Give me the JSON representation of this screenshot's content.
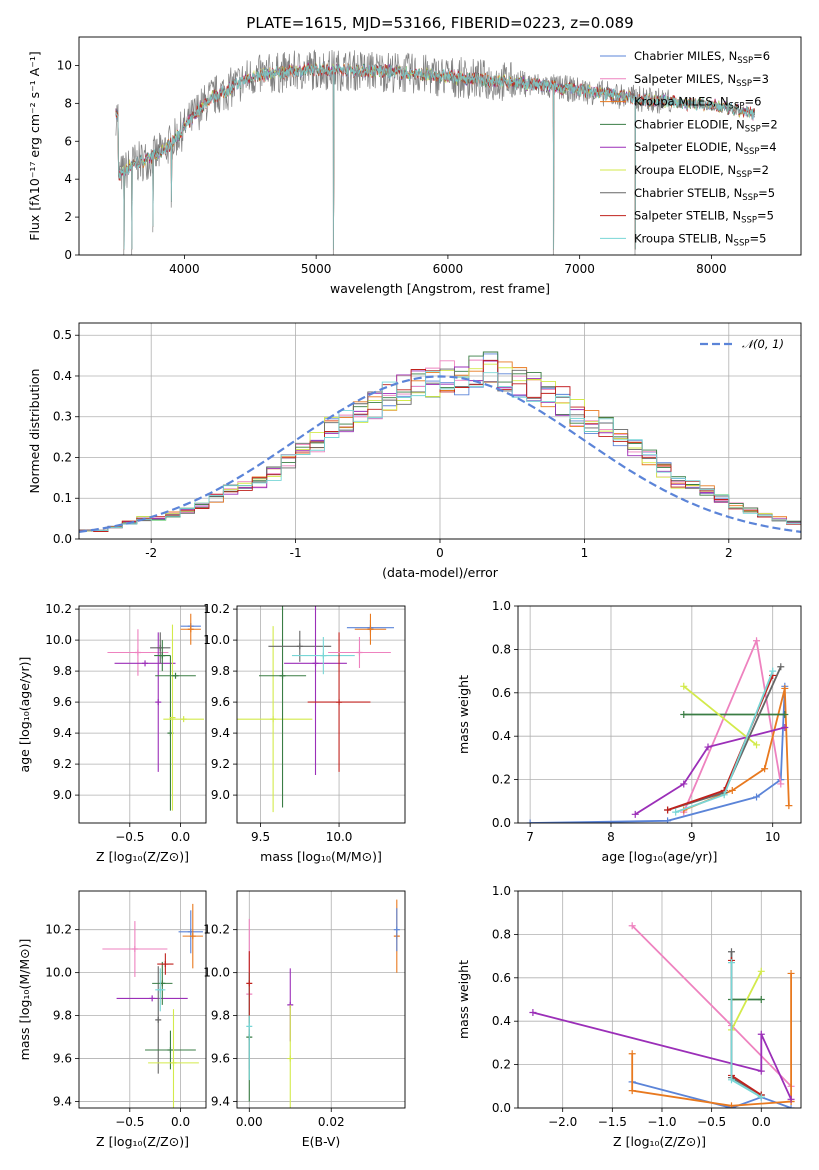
{
  "figure": {
    "title": "PLATE=1615, MJD=53166, FIBERID=0223, z=0.089"
  },
  "colors": {
    "palette": [
      "#5b84d8",
      "#ee82bf",
      "#e8791f",
      "#3a7d44",
      "#9b2fb8",
      "#d3ea4b",
      "#666666",
      "#c0221d",
      "#78d6d6"
    ],
    "grid": "#b0b0b0",
    "spectrum": "#808080",
    "gaussian": "#5b84d8"
  },
  "chart_data": [
    {
      "id": "spectrum",
      "type": "line",
      "xlabel": "wavelength [Angstrom, rest frame]",
      "ylabel": "Flux [fλ10⁻¹⁷ erg cm⁻² s⁻¹ A⁻¹]",
      "xlim": [
        3200,
        8680
      ],
      "ylim": [
        0,
        11.5
      ],
      "xticks": [
        4000,
        5000,
        6000,
        7000,
        8000
      ],
      "yticks": [
        0,
        2,
        4,
        6,
        8,
        10
      ],
      "grid": false,
      "legend_position": "right",
      "legend": [
        {
          "label": "Chabrier MILES, N",
          "sub": "SSP",
          "suffix": "=6"
        },
        {
          "label": "Salpeter MILES, N",
          "sub": "SSP",
          "suffix": "=3"
        },
        {
          "label": "Kroupa MILES, N",
          "sub": "SSP",
          "suffix": "=6"
        },
        {
          "label": "Chabrier ELODIE, N",
          "sub": "SSP",
          "suffix": "=2"
        },
        {
          "label": "Salpeter ELODIE, N",
          "sub": "SSP",
          "suffix": "=4"
        },
        {
          "label": "Kroupa ELODIE, N",
          "sub": "SSP",
          "suffix": "=2"
        },
        {
          "label": "Chabrier STELIB, N",
          "sub": "SSP",
          "suffix": "=5"
        },
        {
          "label": "Salpeter STELIB, N",
          "sub": "SSP",
          "suffix": "=5"
        },
        {
          "label": "Kroupa STELIB, N",
          "sub": "SSP",
          "suffix": "=5"
        }
      ],
      "continuum": {
        "x": [
          3500,
          3550,
          3600,
          3700,
          3800,
          3900,
          4000,
          4100,
          4200,
          4300,
          4500,
          4700,
          5000,
          5500,
          6000,
          6500,
          7000,
          7500,
          8000,
          8350
        ],
        "y": [
          4.2,
          4.4,
          4.8,
          5.0,
          5.3,
          5.9,
          6.7,
          7.6,
          8.3,
          8.6,
          9.4,
          9.6,
          9.8,
          9.7,
          9.4,
          9.1,
          8.7,
          8.2,
          7.9,
          7.4
        ]
      },
      "spikes": [
        {
          "x": 3540,
          "y": 0
        },
        {
          "x": 3600,
          "y": 0
        },
        {
          "x": 3760,
          "y": 1.2
        },
        {
          "x": 3900,
          "y": 2.5
        },
        {
          "x": 5130,
          "y": 0
        },
        {
          "x": 6800,
          "y": 0
        },
        {
          "x": 7420,
          "y": 0
        }
      ]
    },
    {
      "id": "residual-histogram",
      "type": "bar",
      "xlabel": "(data-model)/error",
      "ylabel": "Normed distribution",
      "xlim": [
        -2.5,
        2.5
      ],
      "ylim": [
        0,
        0.53
      ],
      "xticks": [
        -2,
        -1,
        0,
        1,
        2
      ],
      "yticks": [
        0.0,
        0.1,
        0.2,
        0.3,
        0.4,
        0.5
      ],
      "grid": true,
      "legend_position": "top-right",
      "legend": "𝒩(0, 1)",
      "bin_width": 0.1,
      "reference_values": [
        0.02,
        0.02,
        0.03,
        0.04,
        0.05,
        0.05,
        0.06,
        0.07,
        0.08,
        0.1,
        0.12,
        0.13,
        0.14,
        0.16,
        0.19,
        0.22,
        0.24,
        0.27,
        0.29,
        0.31,
        0.33,
        0.35,
        0.37,
        0.38,
        0.38,
        0.4,
        0.39,
        0.41,
        0.42,
        0.4,
        0.39,
        0.37,
        0.35,
        0.34,
        0.31,
        0.29,
        0.27,
        0.25,
        0.22,
        0.2,
        0.17,
        0.14,
        0.13,
        0.12,
        0.1,
        0.08,
        0.07,
        0.06,
        0.05,
        0.04
      ],
      "model_curve": "gaussian"
    },
    {
      "id": "age-vs-Z",
      "type": "scatter",
      "xlabel": "Z [log₁₀(Z/Z⊙)]",
      "ylabel": "age  [log₁₀(age/yr)]",
      "xlim": [
        -1.0,
        0.25
      ],
      "ylim": [
        8.82,
        10.22
      ],
      "xticks": [
        -0.5,
        0.0
      ],
      "xticklabels": [
        "−0.5",
        "0.0"
      ],
      "yticks": [
        9.0,
        9.2,
        9.4,
        9.6,
        9.8,
        10.0,
        10.2
      ],
      "grid": true,
      "points": [
        {
          "x": -0.42,
          "y": 9.92,
          "xerr": 0.3,
          "yerr": 0.15,
          "color": 1
        },
        {
          "x": -0.35,
          "y": 9.85,
          "xerr": 0.3,
          "yerr": 0.0,
          "color": 4
        },
        {
          "x": -0.22,
          "y": 9.6,
          "xerr": 0.0,
          "yerr": 0.45,
          "color": 4
        },
        {
          "x": -0.2,
          "y": 9.95,
          "xerr": 0.1,
          "yerr": 0.1,
          "color": 6
        },
        {
          "x": -0.18,
          "y": 9.9,
          "xerr": 0.08,
          "yerr": 0.1,
          "color": 3
        },
        {
          "x": -0.1,
          "y": 9.4,
          "xerr": 0.0,
          "yerr": 0.5,
          "color": 3
        },
        {
          "x": -0.08,
          "y": 9.5,
          "xerr": 0.0,
          "yerr": 0.6,
          "color": 5
        },
        {
          "x": -0.05,
          "y": 9.77,
          "xerr": 0.2,
          "yerr": 0.0,
          "color": 3
        },
        {
          "x": 0.03,
          "y": 9.49,
          "xerr": 0.2,
          "yerr": 0.0,
          "color": 5
        },
        {
          "x": 0.1,
          "y": 10.09,
          "xerr": 0.1,
          "yerr": 0.0,
          "color": 0
        },
        {
          "x": 0.1,
          "y": 10.07,
          "xerr": 0.1,
          "yerr": 0.1,
          "color": 2
        }
      ]
    },
    {
      "id": "age-vs-mass",
      "type": "scatter",
      "xlabel": "mass [log₁₀(M/M⊙)]",
      "ylabel": "",
      "xlim": [
        9.35,
        10.42
      ],
      "ylim": [
        8.82,
        10.22
      ],
      "xticks": [
        9.5,
        10.0
      ],
      "yticks": [
        9.0,
        9.2,
        9.4,
        9.6,
        9.8,
        10.0,
        10.2
      ],
      "grid": true,
      "points": [
        {
          "x": 9.58,
          "y": 9.49,
          "xerr": 0.25,
          "yerr": 0.6,
          "color": 5
        },
        {
          "x": 9.64,
          "y": 9.77,
          "xerr": 0.15,
          "yerr": 0.85,
          "color": 3
        },
        {
          "x": 9.75,
          "y": 9.96,
          "xerr": 0.2,
          "yerr": 0.1,
          "color": 6
        },
        {
          "x": 9.85,
          "y": 9.85,
          "xerr": 0.2,
          "yerr": 0.72,
          "color": 4
        },
        {
          "x": 9.9,
          "y": 9.9,
          "xerr": 0.2,
          "yerr": 0.12,
          "color": 8
        },
        {
          "x": 10.0,
          "y": 9.6,
          "xerr": 0.2,
          "yerr": 0.45,
          "color": 7
        },
        {
          "x": 10.13,
          "y": 9.92,
          "xerr": 0.2,
          "yerr": 0.1,
          "color": 1
        },
        {
          "x": 10.2,
          "y": 10.08,
          "xerr": 0.15,
          "yerr": 0.05,
          "color": 0
        },
        {
          "x": 10.2,
          "y": 10.07,
          "xerr": 0.1,
          "yerr": 0.1,
          "color": 2
        }
      ]
    },
    {
      "id": "weight-vs-age",
      "type": "line",
      "xlabel": "age  [log₁₀(age/yr)]",
      "ylabel": "mass weight",
      "xlim": [
        6.85,
        10.35
      ],
      "ylim": [
        0,
        1.0
      ],
      "xticks": [
        7,
        8,
        9,
        10
      ],
      "yticks": [
        0.0,
        0.2,
        0.4,
        0.6,
        0.8,
        1.0
      ],
      "grid": true,
      "series": [
        {
          "color": 0,
          "x": [
            7.0,
            8.7,
            9.8,
            10.1,
            10.15
          ],
          "y": [
            0.0,
            0.01,
            0.12,
            0.2,
            0.63
          ]
        },
        {
          "color": 1,
          "x": [
            8.9,
            9.8,
            10.1
          ],
          "y": [
            0.05,
            0.84,
            0.18
          ]
        },
        {
          "color": 2,
          "x": [
            8.9,
            9.5,
            9.9,
            10.15,
            10.2
          ],
          "y": [
            0.06,
            0.15,
            0.25,
            0.62,
            0.08
          ]
        },
        {
          "color": 3,
          "x": [
            8.9,
            10.15
          ],
          "y": [
            0.5,
            0.5
          ]
        },
        {
          "color": 4,
          "x": [
            8.3,
            8.9,
            9.2,
            10.15
          ],
          "y": [
            0.04,
            0.18,
            0.35,
            0.44
          ]
        },
        {
          "color": 5,
          "x": [
            8.9,
            9.8
          ],
          "y": [
            0.63,
            0.36
          ]
        },
        {
          "color": 6,
          "x": [
            8.7,
            9.4,
            10.1
          ],
          "y": [
            0.06,
            0.14,
            0.72
          ]
        },
        {
          "color": 7,
          "x": [
            8.7,
            9.4,
            10.0
          ],
          "y": [
            0.06,
            0.15,
            0.68
          ]
        },
        {
          "color": 8,
          "x": [
            8.8,
            9.4,
            10.0
          ],
          "y": [
            0.05,
            0.13,
            0.7
          ]
        }
      ]
    },
    {
      "id": "mass-vs-Z",
      "type": "scatter",
      "xlabel": "Z [log₁₀(Z/Z⊙)]",
      "ylabel": "mass [log₁₀(M/M⊙)]",
      "xlim": [
        -1.0,
        0.25
      ],
      "ylim": [
        9.37,
        10.38
      ],
      "xticks": [
        -0.5,
        0.0
      ],
      "xticklabels": [
        "−0.5",
        "0.0"
      ],
      "yticks": [
        9.4,
        9.6,
        9.8,
        10.0,
        10.2
      ],
      "grid": true,
      "points": [
        {
          "x": -0.45,
          "y": 10.11,
          "xerr": 0.32,
          "yerr": 0.13,
          "color": 1
        },
        {
          "x": -0.28,
          "y": 9.88,
          "xerr": 0.35,
          "yerr": 0.0,
          "color": 4
        },
        {
          "x": -0.22,
          "y": 9.78,
          "xerr": 0.0,
          "yerr": 0.25,
          "color": 6
        },
        {
          "x": -0.18,
          "y": 9.95,
          "xerr": 0.1,
          "yerr": 0.1,
          "color": 3
        },
        {
          "x": -0.15,
          "y": 10.04,
          "xerr": 0.08,
          "yerr": 0.05,
          "color": 7
        },
        {
          "x": -0.2,
          "y": 9.92,
          "xerr": 0.05,
          "yerr": 0.1,
          "color": 8
        },
        {
          "x": -0.1,
          "y": 9.64,
          "xerr": 0.25,
          "yerr": 0.09,
          "color": 3
        },
        {
          "x": -0.07,
          "y": 9.58,
          "xerr": 0.25,
          "yerr": 0.25,
          "color": 5
        },
        {
          "x": 0.1,
          "y": 10.19,
          "xerr": 0.12,
          "yerr": 0.1,
          "color": 0
        },
        {
          "x": 0.12,
          "y": 10.17,
          "xerr": 0.1,
          "yerr": 0.15,
          "color": 2
        }
      ]
    },
    {
      "id": "mass-vs-ebv",
      "type": "scatter",
      "xlabel": "E(B-V)",
      "ylabel": "",
      "xlim": [
        -0.003,
        0.038
      ],
      "ylim": [
        9.37,
        10.38
      ],
      "xticks": [
        0.0,
        0.02
      ],
      "xticklabels": [
        "0.00",
        "0.02"
      ],
      "yticks": [
        9.4,
        9.6,
        9.8,
        10.0,
        10.2
      ],
      "grid": true,
      "points": [
        {
          "x": 0.0,
          "y": 9.9,
          "xerr": 0.0,
          "yerr": 0.35,
          "color": 1
        },
        {
          "x": 0.0,
          "y": 9.7,
          "xerr": 0.0,
          "yerr": 0.3,
          "color": 3
        },
        {
          "x": 0.0,
          "y": 9.75,
          "xerr": 0.0,
          "yerr": 0.25,
          "color": 8
        },
        {
          "x": 0.0,
          "y": 9.95,
          "xerr": 0.0,
          "yerr": 0.15,
          "color": 7
        },
        {
          "x": 0.01,
          "y": 9.85,
          "xerr": 0.0,
          "yerr": 0.17,
          "color": 4
        },
        {
          "x": 0.01,
          "y": 9.6,
          "xerr": 0.0,
          "yerr": 0.25,
          "color": 5
        },
        {
          "x": 0.036,
          "y": 10.17,
          "xerr": 0.0,
          "yerr": 0.17,
          "color": 2
        },
        {
          "x": 0.036,
          "y": 10.2,
          "xerr": 0.0,
          "yerr": 0.1,
          "color": 0
        }
      ]
    },
    {
      "id": "weight-vs-Z",
      "type": "line",
      "xlabel": "Z [log₁₀(Z/Z⊙)]",
      "ylabel": "mass weight",
      "xlim": [
        -2.45,
        0.4
      ],
      "ylim": [
        0,
        1.0
      ],
      "xticks": [
        -2.0,
        -1.5,
        -1.0,
        -0.5,
        0.0
      ],
      "xticklabels": [
        "−2.0",
        "−1.5",
        "−1.0",
        "−0.5",
        "0.0"
      ],
      "yticks": [
        0.0,
        0.2,
        0.4,
        0.6,
        0.8,
        1.0
      ],
      "grid": true,
      "series": [
        {
          "color": 0,
          "x": [
            -1.3,
            -1.3,
            -0.3,
            0.0,
            0.3
          ],
          "y": [
            0.12,
            0.12,
            0.0,
            0.05,
            0.0
          ]
        },
        {
          "color": 1,
          "x": [
            -1.3,
            -0.3,
            0.3
          ],
          "y": [
            0.84,
            0.38,
            0.1
          ]
        },
        {
          "color": 2,
          "x": [
            -1.3,
            -1.3,
            -0.3,
            0.3,
            0.3,
            0.3
          ],
          "y": [
            0.25,
            0.08,
            0.01,
            0.03,
            0.62,
            0.03
          ]
        },
        {
          "color": 3,
          "x": [
            -0.3,
            0.0
          ],
          "y": [
            0.5,
            0.5
          ]
        },
        {
          "color": 4,
          "x": [
            -2.3,
            0.0,
            0.0,
            0.3
          ],
          "y": [
            0.44,
            0.17,
            0.34,
            0.04
          ]
        },
        {
          "color": 5,
          "x": [
            -0.3,
            0.0
          ],
          "y": [
            0.36,
            0.63
          ]
        },
        {
          "color": 6,
          "x": [
            -0.3,
            -0.3,
            0.0
          ],
          "y": [
            0.72,
            0.14,
            0.06
          ]
        },
        {
          "color": 7,
          "x": [
            -0.3,
            -0.3,
            0.0
          ],
          "y": [
            0.68,
            0.15,
            0.06
          ]
        },
        {
          "color": 8,
          "x": [
            -0.3,
            -0.3,
            0.0
          ],
          "y": [
            0.67,
            0.13,
            0.05
          ]
        }
      ]
    }
  ]
}
